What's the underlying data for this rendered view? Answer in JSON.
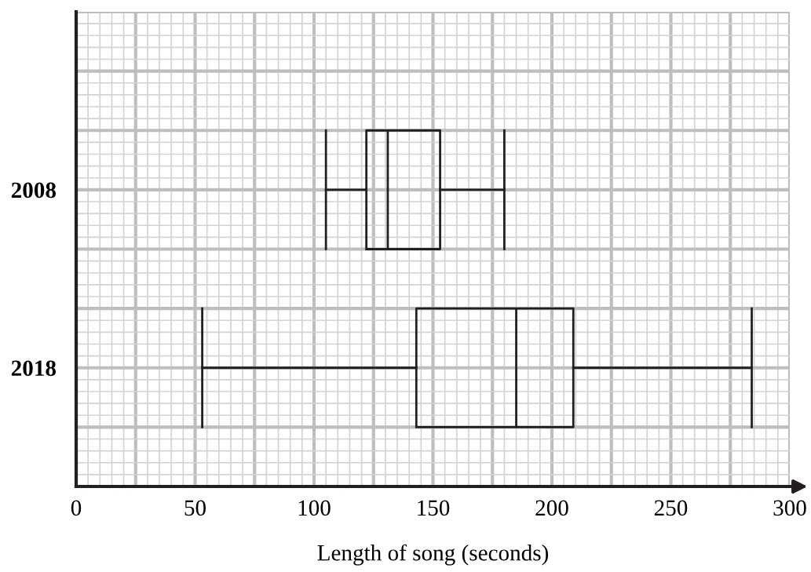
{
  "chart_data": {
    "type": "box",
    "orientation": "horizontal",
    "xlabel": "Length of song (seconds)",
    "categories": [
      "2008",
      "2018"
    ],
    "boxes": [
      {
        "low": 105,
        "q1": 122,
        "median": 131,
        "q3": 153,
        "high": 180
      },
      {
        "low": 53,
        "q1": 143,
        "median": 185,
        "q3": 209,
        "high": 284
      }
    ],
    "xlim": [
      0,
      300
    ],
    "xticks": [
      0,
      {
        "value": 25,
        "label": null
      },
      50,
      {
        "value": 75,
        "label": null
      },
      100,
      {
        "value": 125,
        "label": null
      },
      150,
      {
        "value": 175,
        "label": null
      },
      200,
      {
        "value": 225,
        "label": null
      },
      250,
      {
        "value": 275,
        "label": null
      },
      300
    ],
    "grid": true
  }
}
